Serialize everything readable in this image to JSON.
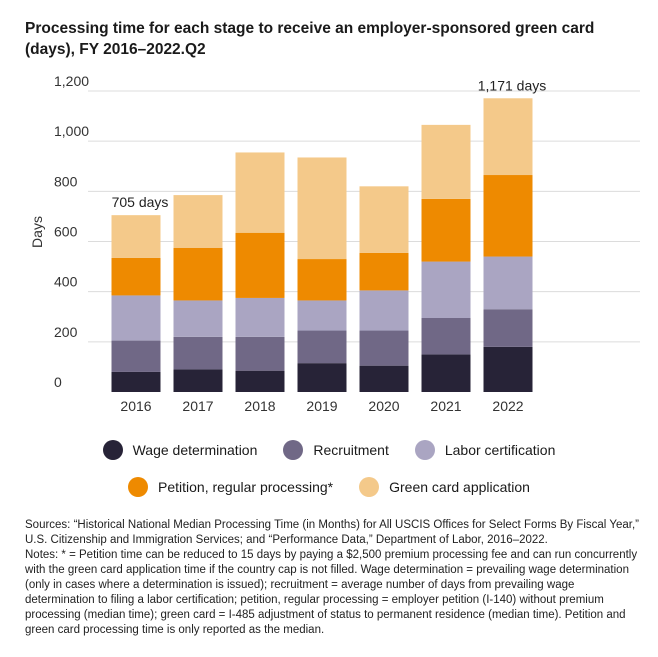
{
  "chart_data": {
    "type": "stacked-bar",
    "title": "Processing time for each stage to receive an employer-sponsored green card (days), FY 2016–2022.Q2",
    "ylabel": "Days",
    "xlabel": "",
    "ylim": [
      0,
      1200
    ],
    "yticks": [
      "0",
      "200",
      "400",
      "600",
      "800",
      "1,000",
      "1,200"
    ],
    "ytick_values": [
      0,
      200,
      400,
      600,
      800,
      1000,
      1200
    ],
    "categories": [
      "2016",
      "2017",
      "2018",
      "2019",
      "2020",
      "2021",
      "2022"
    ],
    "series": [
      {
        "name": "Wage determination",
        "color": "#272337",
        "values": [
          80,
          90,
          85,
          115,
          105,
          150,
          180
        ]
      },
      {
        "name": "Recruitment",
        "color": "#706886",
        "values": [
          125,
          130,
          135,
          130,
          140,
          145,
          150
        ]
      },
      {
        "name": "Labor certification",
        "color": "#aaa5c2",
        "values": [
          180,
          145,
          155,
          120,
          160,
          225,
          210
        ]
      },
      {
        "name": "Petition, regular processing*",
        "color": "#ee8a00",
        "values": [
          150,
          210,
          260,
          165,
          150,
          250,
          325
        ]
      },
      {
        "name": "Green card application",
        "color": "#f4c98a",
        "values": [
          170,
          210,
          320,
          405,
          265,
          295,
          306
        ]
      }
    ],
    "annotations": [
      {
        "category": "2016",
        "text": "705 days"
      },
      {
        "category": "2022",
        "text": "1,171 days"
      }
    ],
    "grid": true,
    "legend": "bottom"
  },
  "sources": "Sources: “Historical National Median Processing Time (in Months) for All USCIS Offices for Select Forms By Fiscal Year,” U.S. Citizenship and Immigration Services; and “Performance Data,” Department of Labor, 2016–2022.",
  "notes": "Notes: * = Petition time can be reduced to 15 days by paying a $2,500 premium processing fee and can run concurrently with the green card application time if the country cap is not filled. Wage determination = prevailing wage determination (only in cases where a determination is issued); recruitment = average number of days from prevailing wage determination to filing a labor certification; petition, regular processing = employer petition (I-140) without premium processing (median time); green card = I-485 adjustment of status to permanent residence (median time). Petition and green card processing time is only reported as the median."
}
